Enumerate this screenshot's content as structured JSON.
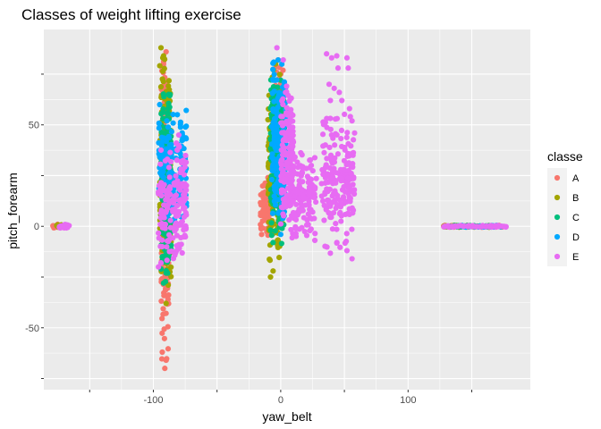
{
  "chart_data": {
    "type": "scatter",
    "title": "Classes of weight lifting exercise",
    "xlabel": "yaw_belt",
    "ylabel": "pitch_forearm",
    "xlim": [
      -186,
      196
    ],
    "ylim": [
      -80.5,
      97
    ],
    "x_ticks": [
      -150,
      -100,
      -50,
      0,
      50,
      100,
      150
    ],
    "x_tick_labels": [
      "",
      "-100",
      "",
      "0",
      "",
      "100",
      ""
    ],
    "y_ticks": [
      -75,
      -50,
      -25,
      0,
      25,
      50,
      75
    ],
    "y_tick_labels": [
      "",
      "-50",
      "",
      "0",
      "",
      "50",
      ""
    ],
    "grid": true,
    "panel_background": "#ebebeb",
    "grid_color": "#ffffff",
    "legend_title": "classe",
    "legend_position": "right",
    "series": [
      {
        "name": "A",
        "color": "#F8766D",
        "clusters": [
          {
            "x": [
              -179,
              -172
            ],
            "y": [
              -1,
              1
            ]
          },
          {
            "x": [
              -94,
              -88
            ],
            "y": [
              -72,
              88
            ]
          },
          {
            "x": [
              -16,
              -8
            ],
            "y": [
              -8,
              24
            ]
          },
          {
            "x": [
              -5,
              2
            ],
            "y": [
              10,
              82
            ]
          },
          {
            "x": [
              124,
              175
            ],
            "y": [
              -0.5,
              0.5
            ]
          }
        ],
        "points": [
          [
            -91,
            -70
          ],
          [
            -90,
            -66
          ],
          [
            -93,
            -62
          ],
          [
            -90,
            86
          ],
          [
            -92,
            80
          ],
          [
            -15,
            -4
          ],
          [
            -12,
            20
          ],
          [
            -10,
            24
          ],
          [
            -2,
            82
          ],
          [
            0,
            75
          ]
        ]
      },
      {
        "name": "B",
        "color": "#A3A500",
        "clusters": [
          {
            "x": [
              -176,
              -170
            ],
            "y": [
              -1,
              1
            ]
          },
          {
            "x": [
              -95,
              -86
            ],
            "y": [
              -40,
              88
            ]
          },
          {
            "x": [
              -10,
              2
            ],
            "y": [
              -26,
              82
            ]
          },
          {
            "x": [
              128,
              172
            ],
            "y": [
              -0.5,
              0.5
            ]
          }
        ],
        "points": [
          [
            -94,
            88
          ],
          [
            -92,
            84
          ],
          [
            -90,
            -38
          ],
          [
            -8,
            -25
          ],
          [
            -6,
            -22
          ],
          [
            -4,
            80
          ]
        ]
      },
      {
        "name": "C",
        "color": "#00BF7D",
        "clusters": [
          {
            "x": [
              -94,
              -86
            ],
            "y": [
              -30,
              70
            ]
          },
          {
            "x": [
              -8,
              3
            ],
            "y": [
              -10,
              75
            ]
          },
          {
            "x": [
              130,
              170
            ],
            "y": [
              -0.5,
              0.5
            ]
          }
        ],
        "points": [
          [
            -92,
            -28
          ],
          [
            -88,
            65
          ],
          [
            -6,
            -8
          ],
          [
            0,
            72
          ]
        ]
      },
      {
        "name": "D",
        "color": "#00A9FF",
        "clusters": [
          {
            "x": [
              -96,
              -74
            ],
            "y": [
              0,
              60
            ]
          },
          {
            "x": [
              -7,
              4
            ],
            "y": [
              -5,
              82
            ]
          },
          {
            "x": [
              140,
              175
            ],
            "y": [
              -0.5,
              0.5
            ]
          }
        ],
        "points": [
          [
            -95,
            60
          ],
          [
            -76,
            5
          ],
          [
            -74,
            10
          ],
          [
            -2,
            82
          ],
          [
            0,
            -4
          ]
        ]
      },
      {
        "name": "E",
        "color": "#E76BF3",
        "clusters": [
          {
            "x": [
              -174,
              -166
            ],
            "y": [
              -1,
              1
            ]
          },
          {
            "x": [
              -96,
              -74
            ],
            "y": [
              -20,
              45
            ]
          },
          {
            "x": [
              0,
              10
            ],
            "y": [
              -5,
              70
            ]
          },
          {
            "x": [
              8,
              28
            ],
            "y": [
              -8,
              38
            ]
          },
          {
            "x": [
              32,
              58
            ],
            "y": [
              -16,
              58
            ]
          },
          {
            "x": [
              125,
              178
            ],
            "y": [
              -0.5,
              0.5
            ]
          }
        ],
        "points": [
          [
            -96,
            -20
          ],
          [
            -94,
            -18
          ],
          [
            -80,
            45
          ],
          [
            2,
            82
          ],
          [
            -3,
            88
          ],
          [
            36,
            85
          ],
          [
            40,
            83
          ],
          [
            44,
            84
          ],
          [
            45,
            78
          ],
          [
            52,
            83
          ],
          [
            53,
            78
          ],
          [
            38,
            70
          ],
          [
            42,
            68
          ],
          [
            46,
            66
          ],
          [
            39,
            62
          ],
          [
            48,
            62
          ],
          [
            54,
            58
          ],
          [
            56,
            52
          ],
          [
            58,
            46
          ],
          [
            56,
            -16
          ],
          [
            52,
            -12
          ],
          [
            12,
            -5
          ],
          [
            24,
            30
          ]
        ]
      }
    ]
  }
}
